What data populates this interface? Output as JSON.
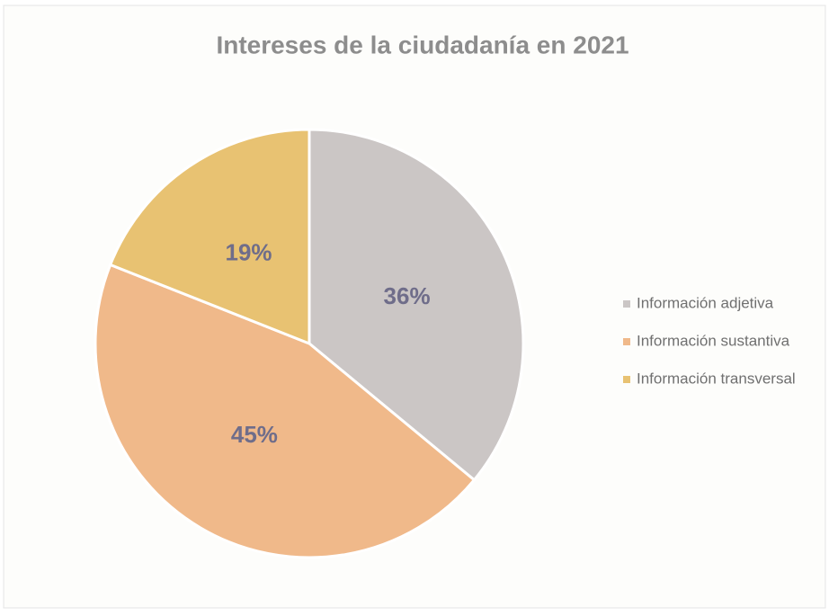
{
  "chart_data": {
    "type": "pie",
    "title": "Intereses de la ciudadanía en 2021",
    "categories": [
      "Información adjetiva",
      "Información sustantiva",
      "Información transversal"
    ],
    "values": [
      36,
      45,
      19
    ],
    "value_labels": [
      "36%",
      "45%",
      "19%"
    ],
    "colors": [
      "#cbc6c5",
      "#f0b98a",
      "#e8c272"
    ],
    "legend": "right"
  }
}
